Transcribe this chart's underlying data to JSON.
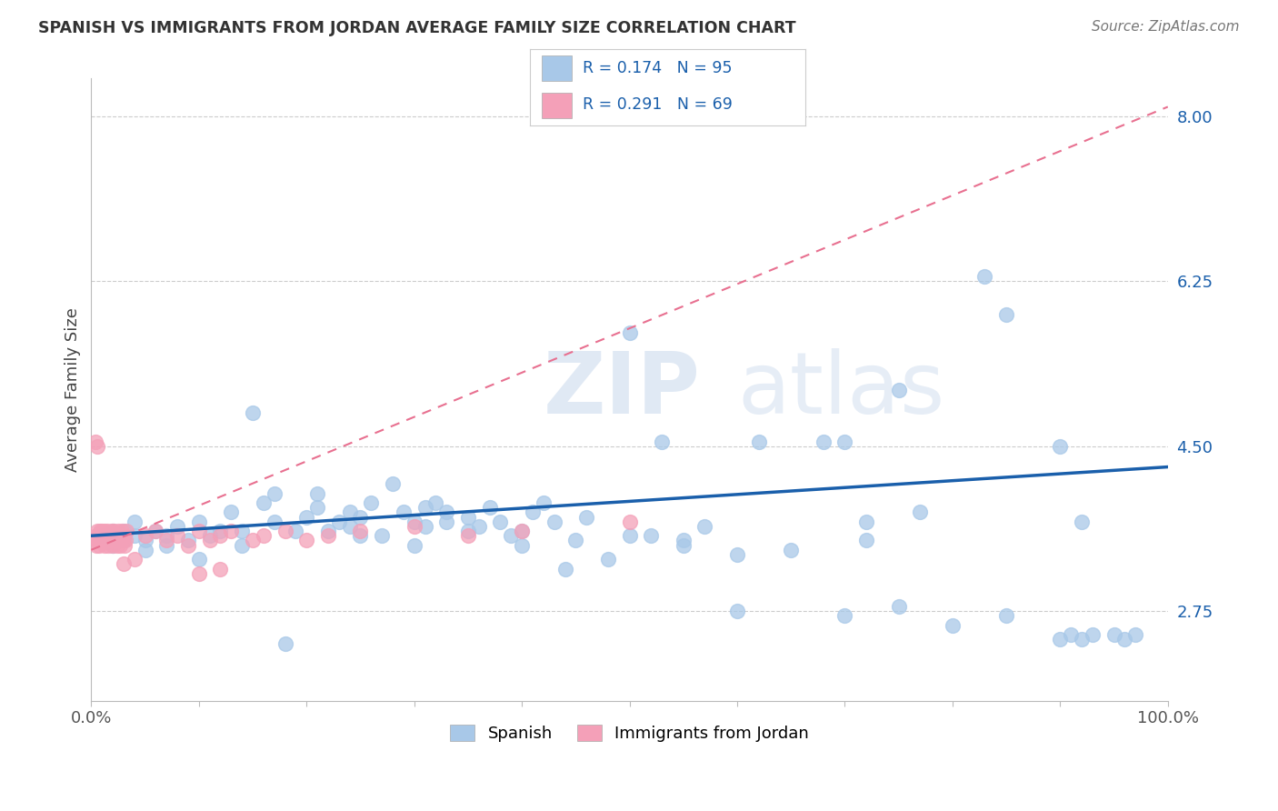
{
  "title": "SPANISH VS IMMIGRANTS FROM JORDAN AVERAGE FAMILY SIZE CORRELATION CHART",
  "source": "Source: ZipAtlas.com",
  "ylabel": "Average Family Size",
  "watermark": "ZIPatlas",
  "xmin": 0.0,
  "xmax": 1.0,
  "ymin": 1.8,
  "ymax": 8.4,
  "yticks": [
    2.75,
    4.5,
    6.25,
    8.0
  ],
  "xtick_vals": [
    0.0,
    0.1,
    0.2,
    0.3,
    0.4,
    0.5,
    0.6,
    0.7,
    0.8,
    0.9,
    1.0
  ],
  "xtick_labels": [
    "0.0%",
    "",
    "",
    "",
    "",
    "",
    "",
    "",
    "",
    "",
    "100.0%"
  ],
  "blue_color": "#A8C8E8",
  "pink_color": "#F4A0B8",
  "blue_line_color": "#1A5FAB",
  "pink_line_color": "#E87090",
  "r_blue": 0.174,
  "n_blue": 95,
  "r_pink": 0.291,
  "n_pink": 69,
  "legend_label_blue": "Spanish",
  "legend_label_pink": "Immigrants from Jordan",
  "blue_trend_x0": 0.0,
  "blue_trend_y0": 3.55,
  "blue_trend_x1": 1.0,
  "blue_trend_y1": 4.28,
  "pink_trend_x0": 0.0,
  "pink_trend_y0": 3.4,
  "pink_trend_x1": 1.0,
  "pink_trend_y1": 8.1
}
